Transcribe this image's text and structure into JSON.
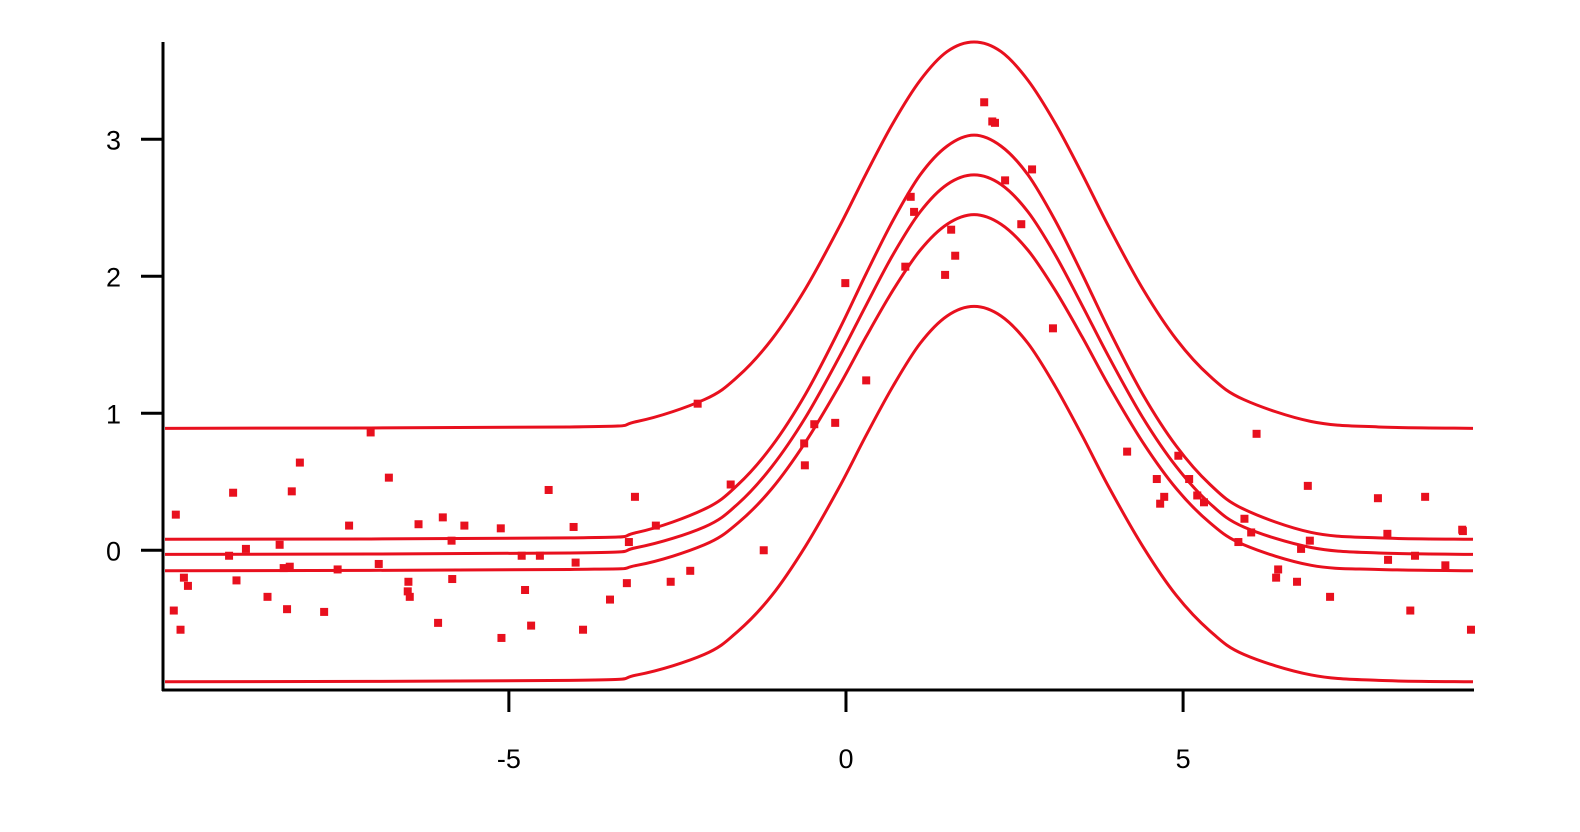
{
  "chart_data": {
    "type": "scatter",
    "color": "#e8101e",
    "xlim": [
      -10.13,
      9.3
    ],
    "ylim": [
      -1.02,
      3.71
    ],
    "xticks": [
      -5,
      0,
      5
    ],
    "yticks": [
      0,
      1,
      2,
      3
    ],
    "series": [
      {
        "type": "scatter",
        "color": "#e8101e",
        "x": [
          -9.94,
          -9.97,
          -9.87,
          -9.82,
          -9.76,
          -9.15,
          -9.09,
          -9.04,
          -8.9,
          -8.58,
          -8.4,
          -8.34,
          -8.29,
          -8.25,
          -8.22,
          -8.1,
          -7.74,
          -7.54,
          -7.37,
          -7.05,
          -6.93,
          -6.78,
          -6.5,
          -6.49,
          -6.47,
          -6.34,
          -6.05,
          -5.98,
          -5.85,
          -5.84,
          -5.66,
          -5.12,
          -5.11,
          -4.81,
          -4.76,
          -4.67,
          -4.54,
          -4.41,
          -4.04,
          -4.01,
          -3.9,
          -3.5,
          -3.25,
          -3.22,
          -3.13,
          -2.82,
          -2.6,
          -2.31,
          -2.2,
          -1.71,
          -1.22,
          -0.62,
          -0.61,
          -0.47,
          -0.16,
          -0.01,
          0.3,
          0.88,
          0.96,
          1.01,
          1.47,
          1.56,
          1.62,
          2.05,
          2.17,
          2.21,
          2.36,
          2.6,
          2.76,
          3.07,
          4.17,
          4.61,
          4.66,
          4.72,
          4.93,
          5.09,
          5.21,
          5.31,
          5.82,
          5.91,
          6.01,
          6.09,
          6.38,
          6.41,
          6.69,
          6.75,
          6.85,
          6.88,
          7.18,
          7.89,
          8.03,
          8.04,
          8.37,
          8.44,
          8.59,
          8.89,
          9.14,
          9.15,
          9.27
        ],
        "values": [
          0.26,
          -0.44,
          -0.58,
          -0.2,
          -0.26,
          -0.04,
          0.42,
          -0.22,
          0.01,
          -0.34,
          0.04,
          -0.13,
          -0.43,
          -0.12,
          0.43,
          0.64,
          -0.45,
          -0.14,
          0.18,
          0.86,
          -0.1,
          0.53,
          -0.3,
          -0.23,
          -0.34,
          0.19,
          -0.53,
          0.24,
          0.07,
          -0.21,
          0.18,
          0.16,
          -0.64,
          -0.04,
          -0.29,
          -0.55,
          -0.04,
          0.44,
          0.17,
          -0.09,
          -0.58,
          -0.36,
          -0.24,
          0.06,
          0.39,
          0.18,
          -0.23,
          -0.15,
          1.07,
          0.48,
          0.0,
          0.78,
          0.62,
          0.92,
          0.93,
          1.95,
          1.24,
          2.07,
          2.58,
          2.47,
          2.01,
          2.34,
          2.15,
          3.27,
          3.13,
          3.12,
          2.7,
          2.38,
          2.78,
          1.62,
          0.72,
          0.52,
          0.34,
          0.39,
          0.69,
          0.52,
          0.4,
          0.35,
          0.06,
          0.23,
          0.13,
          0.85,
          -0.2,
          -0.14,
          -0.23,
          0.01,
          0.47,
          0.07,
          -0.34,
          0.38,
          0.12,
          -0.07,
          -0.44,
          -0.04,
          0.39,
          -0.11,
          0.15,
          0.14,
          -0.58
        ]
      },
      {
        "type": "line",
        "color": "#e8101e",
        "x": [
          -10.1,
          -4.1,
          -3.1,
          -2.1,
          -1.6,
          -1.1,
          -0.6,
          -0.1,
          0.3,
          0.7,
          1.1,
          1.5,
          1.9,
          2.3,
          2.7,
          3.1,
          3.5,
          3.9,
          4.4,
          4.9,
          5.4,
          5.9,
          6.9,
          7.9,
          9.3
        ],
        "values": [
          -0.03,
          -0.02,
          0.02,
          0.17,
          0.34,
          0.61,
          0.97,
          1.41,
          1.79,
          2.16,
          2.47,
          2.67,
          2.74,
          2.67,
          2.47,
          2.16,
          1.79,
          1.41,
          0.97,
          0.61,
          0.34,
          0.17,
          0.02,
          -0.02,
          -0.03
        ]
      },
      {
        "type": "line",
        "color": "#e8101e",
        "x": [
          -10.1,
          -4.1,
          -3.1,
          -2.1,
          -1.6,
          -1.1,
          -0.6,
          -0.1,
          0.3,
          0.7,
          1.1,
          1.5,
          1.9,
          2.3,
          2.7,
          3.1,
          3.5,
          3.9,
          4.4,
          4.9,
          5.4,
          5.9,
          6.9,
          7.9,
          9.3
        ],
        "values": [
          0.08,
          0.09,
          0.13,
          0.3,
          0.48,
          0.76,
          1.14,
          1.61,
          2.02,
          2.41,
          2.74,
          2.95,
          3.03,
          2.95,
          2.74,
          2.41,
          2.02,
          1.61,
          1.14,
          0.76,
          0.48,
          0.3,
          0.13,
          0.09,
          0.08
        ]
      },
      {
        "type": "line",
        "color": "#e8101e",
        "x": [
          -10.1,
          -4.1,
          -3.1,
          -2.1,
          -1.6,
          -1.1,
          -0.6,
          -0.1,
          0.3,
          0.7,
          1.1,
          1.5,
          1.9,
          2.3,
          2.7,
          3.1,
          3.5,
          3.9,
          4.4,
          4.9,
          5.4,
          5.9,
          6.9,
          7.9,
          9.3
        ],
        "values": [
          -0.15,
          -0.14,
          -0.11,
          0.04,
          0.2,
          0.45,
          0.79,
          1.2,
          1.56,
          1.9,
          2.19,
          2.38,
          2.45,
          2.38,
          2.19,
          1.9,
          1.56,
          1.2,
          0.79,
          0.45,
          0.2,
          0.04,
          -0.11,
          -0.14,
          -0.15
        ]
      },
      {
        "type": "line",
        "color": "#e8101e",
        "x": [
          -10.1,
          -4.1,
          -3.1,
          -2.1,
          -1.6,
          -1.1,
          -0.6,
          -0.1,
          0.3,
          0.7,
          1.1,
          1.5,
          1.9,
          2.3,
          2.7,
          3.1,
          3.5,
          3.9,
          4.4,
          4.9,
          5.4,
          5.9,
          6.9,
          7.9,
          9.3
        ],
        "values": [
          0.89,
          0.9,
          0.94,
          1.1,
          1.27,
          1.54,
          1.91,
          2.36,
          2.75,
          3.12,
          3.43,
          3.64,
          3.71,
          3.64,
          3.43,
          3.12,
          2.75,
          2.36,
          1.91,
          1.54,
          1.27,
          1.1,
          0.94,
          0.9,
          0.89
        ]
      },
      {
        "type": "line",
        "color": "#e8101e",
        "x": [
          -10.1,
          -4.1,
          -3.1,
          -2.1,
          -1.6,
          -1.1,
          -0.6,
          -0.1,
          0.3,
          0.7,
          1.1,
          1.5,
          1.9,
          2.3,
          2.7,
          3.1,
          3.5,
          3.9,
          4.4,
          4.9,
          5.4,
          5.9,
          6.9,
          7.9,
          9.3
        ],
        "values": [
          -0.96,
          -0.95,
          -0.91,
          -0.76,
          -0.59,
          -0.33,
          0.03,
          0.46,
          0.84,
          1.2,
          1.51,
          1.71,
          1.78,
          1.71,
          1.51,
          1.2,
          0.84,
          0.46,
          0.03,
          -0.33,
          -0.59,
          -0.76,
          -0.91,
          -0.95,
          -0.96
        ]
      }
    ]
  }
}
